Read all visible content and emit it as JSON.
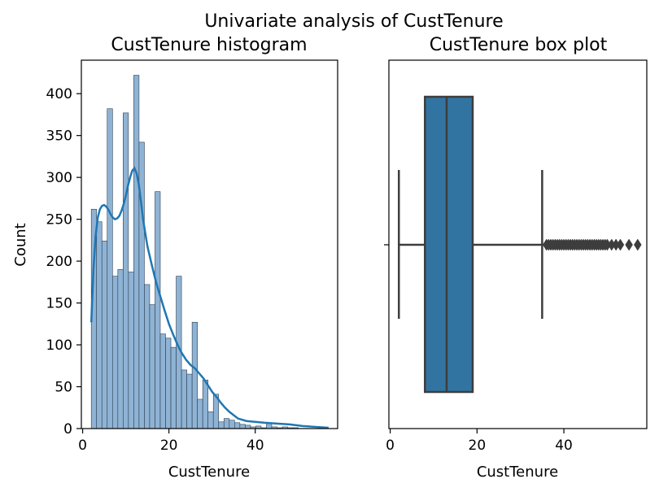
{
  "suptitle": "Univariate analysis of CustTenure",
  "colors": {
    "bar_fill": "#8fb3d4",
    "bar_edge": "#2c3e50",
    "kde_line": "#1f77b4",
    "box_fill": "#3274a1",
    "box_edge": "#3d3d3d",
    "axis": "#000000"
  },
  "chart_data": [
    {
      "type": "bar",
      "subtype": "histogram_with_kde",
      "title": "CustTenure histogram",
      "xlabel": "CustTenure",
      "ylabel": "Count",
      "xlim": [
        -0.3,
        59.1
      ],
      "ylim": [
        0,
        440
      ],
      "xticks": [
        0,
        20,
        40
      ],
      "yticks": [
        0,
        50,
        100,
        150,
        200,
        250,
        300,
        350,
        400
      ],
      "bin_start": 2,
      "bin_width": 1.23,
      "values": [
        262,
        247,
        224,
        382,
        182,
        190,
        377,
        187,
        422,
        342,
        172,
        148,
        283,
        113,
        108,
        97,
        182,
        70,
        65,
        127,
        35,
        58,
        20,
        41,
        8,
        12,
        10,
        7,
        5,
        4,
        2,
        3,
        1,
        6,
        2,
        1,
        2,
        1,
        1,
        0,
        0,
        0,
        0,
        0,
        0,
        0
      ],
      "kde": {
        "x": [
          2,
          2.5,
          3,
          3.5,
          4,
          4.5,
          5,
          5.5,
          6,
          6.5,
          7,
          7.5,
          8,
          8.5,
          9,
          9.5,
          10,
          10.5,
          11,
          11.5,
          12,
          12.5,
          13,
          13.5,
          14,
          15,
          16,
          17,
          18,
          19,
          20,
          21,
          22,
          23,
          24,
          25,
          26,
          27,
          28,
          29,
          30,
          31,
          32,
          33,
          34,
          35,
          36,
          38,
          40,
          42,
          45,
          48,
          51,
          54,
          57
        ],
        "y": [
          127,
          190,
          230,
          252,
          262,
          266,
          267,
          265,
          261,
          256,
          252,
          250,
          251,
          254,
          260,
          268,
          278,
          290,
          300,
          308,
          311,
          305,
          292,
          272,
          250,
          218,
          196,
          175,
          158,
          141,
          125,
          112,
          100,
          90,
          82,
          76,
          72,
          66,
          60,
          52,
          44,
          38,
          31,
          25,
          20,
          16,
          12,
          9,
          8,
          7,
          6,
          5,
          3,
          2,
          1
        ]
      }
    },
    {
      "type": "box",
      "title": "CustTenure box plot",
      "xlabel": "CustTenure",
      "xlim": [
        -0.3,
        59.1
      ],
      "xticks": [
        0,
        20,
        40
      ],
      "whisker_low": 2,
      "q1": 8,
      "median": 13,
      "q3": 19,
      "whisker_high": 35,
      "outliers": [
        36,
        36.5,
        37,
        37.5,
        38,
        38.5,
        39,
        39.5,
        40,
        40.5,
        41,
        41.5,
        42,
        42.5,
        43,
        43.5,
        44,
        44.5,
        45,
        45.5,
        46,
        46.5,
        47,
        47.5,
        48,
        48.5,
        49,
        49.5,
        50,
        51,
        52,
        53,
        55,
        57
      ]
    }
  ]
}
